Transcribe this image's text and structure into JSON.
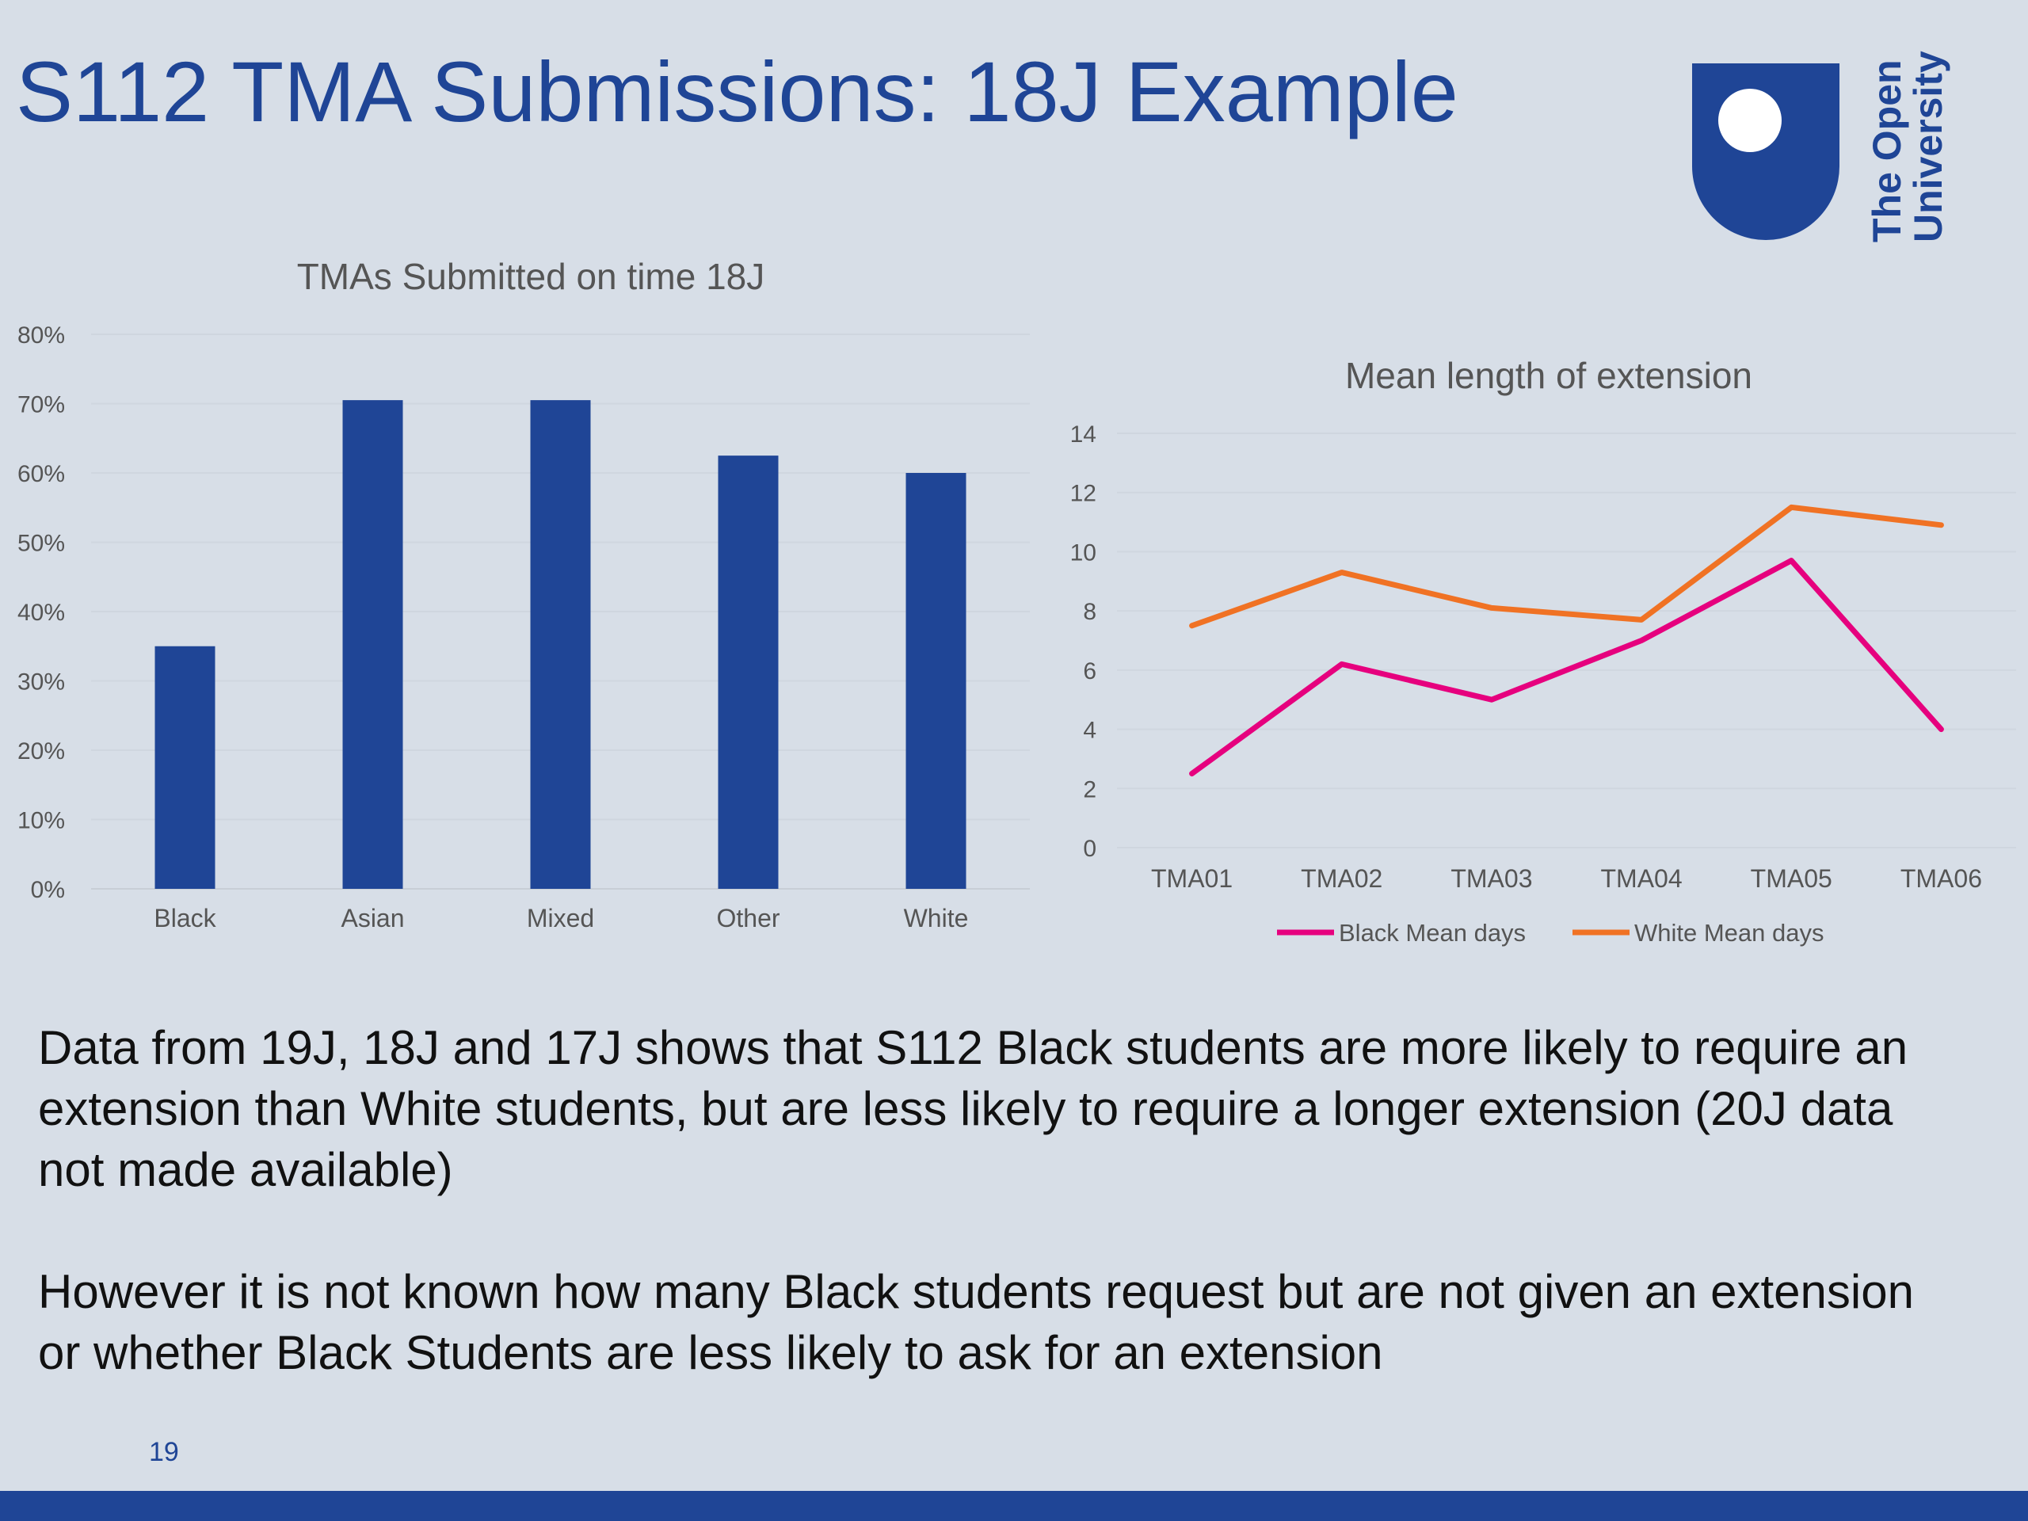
{
  "slide": {
    "title": "S112 TMA Submissions: 18J Example",
    "page_number": "19",
    "paragraphs": [
      "Data from 19J, 18J and 17J shows that S112 Black students are more likely to require an extension than White students, but are less likely to require a longer extension (20J data not made available)",
      "However it is not known how many Black students request but are not given an extension or whether Black Students are less likely to ask for an extension"
    ]
  },
  "logo": {
    "text_line1": "The Open",
    "text_line2": "University",
    "color": "#1f4596"
  },
  "colors": {
    "bar": "#1f4596",
    "black_line": "#e6007e",
    "white_line": "#f07224",
    "axis_text": "#555555"
  },
  "chart_data": [
    {
      "type": "bar",
      "title": "TMAs Submitted on time 18J",
      "categories": [
        "Black",
        "Asian",
        "Mixed",
        "Other",
        "White"
      ],
      "values": [
        35,
        70.5,
        70.5,
        62.5,
        60
      ],
      "ylim": [
        0,
        80
      ],
      "yticks": [
        "0%",
        "10%",
        "20%",
        "30%",
        "40%",
        "50%",
        "60%",
        "70%",
        "80%"
      ],
      "xlabel": "",
      "ylabel": "",
      "grid": true
    },
    {
      "type": "line",
      "title": "Mean length of extension",
      "categories": [
        "TMA01",
        "TMA02",
        "TMA03",
        "TMA04",
        "TMA05",
        "TMA06"
      ],
      "series": [
        {
          "name": "Black Mean days",
          "values": [
            2.5,
            6.2,
            5.0,
            7.0,
            9.7,
            4.0
          ]
        },
        {
          "name": "White Mean days",
          "values": [
            7.5,
            9.3,
            8.1,
            7.7,
            11.5,
            10.9
          ]
        }
      ],
      "ylim": [
        0,
        14
      ],
      "yticks": [
        "0",
        "2",
        "4",
        "6",
        "8",
        "10",
        "12",
        "14"
      ],
      "legend": "bottom",
      "grid": true
    }
  ]
}
